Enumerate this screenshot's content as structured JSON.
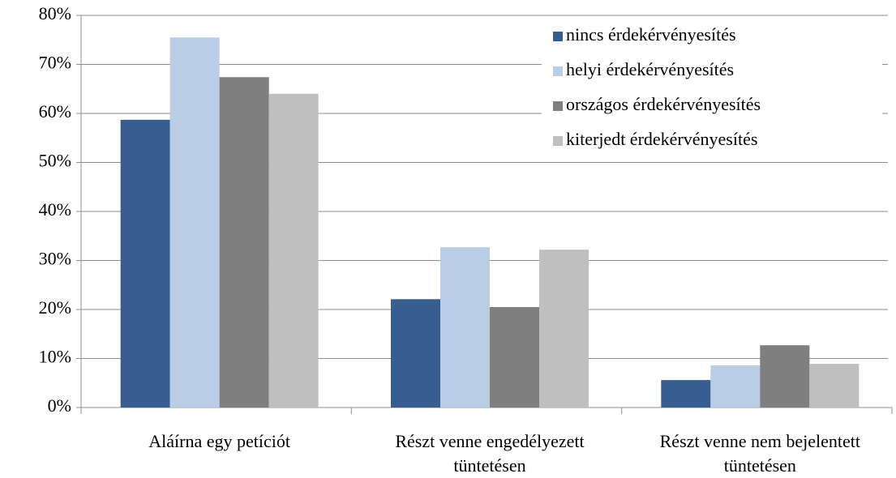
{
  "chart_data": {
    "type": "bar",
    "categories": [
      "Aláírna egy petíciót",
      "Részt venne engedélyezett tüntetésen",
      "Részt venne nem bejelentett tüntetésen"
    ],
    "series": [
      {
        "name": "nincs érdekérvényesítés",
        "color": "#375e8f",
        "values": [
          58.7,
          22.1,
          5.6
        ]
      },
      {
        "name": "helyi érdekérvényesítés",
        "color": "#b9cde5",
        "values": [
          75.5,
          32.7,
          8.6
        ]
      },
      {
        "name": "országos érdekérvényesítés",
        "color": "#7f7f7f",
        "values": [
          67.4,
          20.5,
          12.7
        ]
      },
      {
        "name": "kiterjedt érdekérvényesítés",
        "color": "#bfbfbf",
        "values": [
          64.0,
          32.2,
          8.9
        ]
      }
    ],
    "ylim": [
      0,
      80
    ],
    "yticks": [
      {
        "value": 0,
        "label": "0%"
      },
      {
        "value": 10,
        "label": "10%"
      },
      {
        "value": 20,
        "label": "20%"
      },
      {
        "value": 30,
        "label": "30%"
      },
      {
        "value": 40,
        "label": "40%"
      },
      {
        "value": 50,
        "label": "50%"
      },
      {
        "value": 60,
        "label": "60%"
      },
      {
        "value": 70,
        "label": "70%"
      },
      {
        "value": 80,
        "label": "80%"
      }
    ],
    "grid": true,
    "legend": "top-right"
  }
}
